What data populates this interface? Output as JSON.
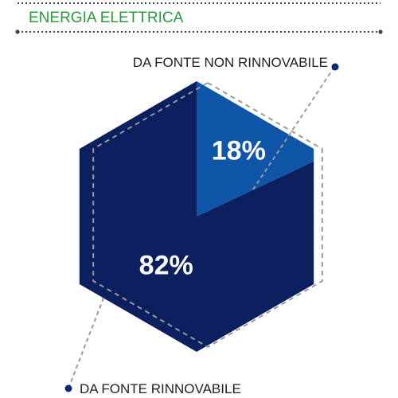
{
  "header": {
    "title": "ENERGIA ELETTRICA"
  },
  "chart_data": {
    "type": "pie",
    "title": "",
    "slices": [
      {
        "label": "DA FONTE NON RINNOVABILE",
        "value": 18,
        "display": "18%",
        "color": "#0f55a8"
      },
      {
        "label": "DA FONTE RINNOVABILE",
        "value": 82,
        "display": "82%",
        "color": "#0c1f5e"
      }
    ]
  },
  "colors": {
    "title": "#2a9a3c",
    "divider": "#444444",
    "outline": "#9a9a9a",
    "leader": "#9a9a9a",
    "dot": "#0c2a6e",
    "callout_text": "#222222"
  }
}
